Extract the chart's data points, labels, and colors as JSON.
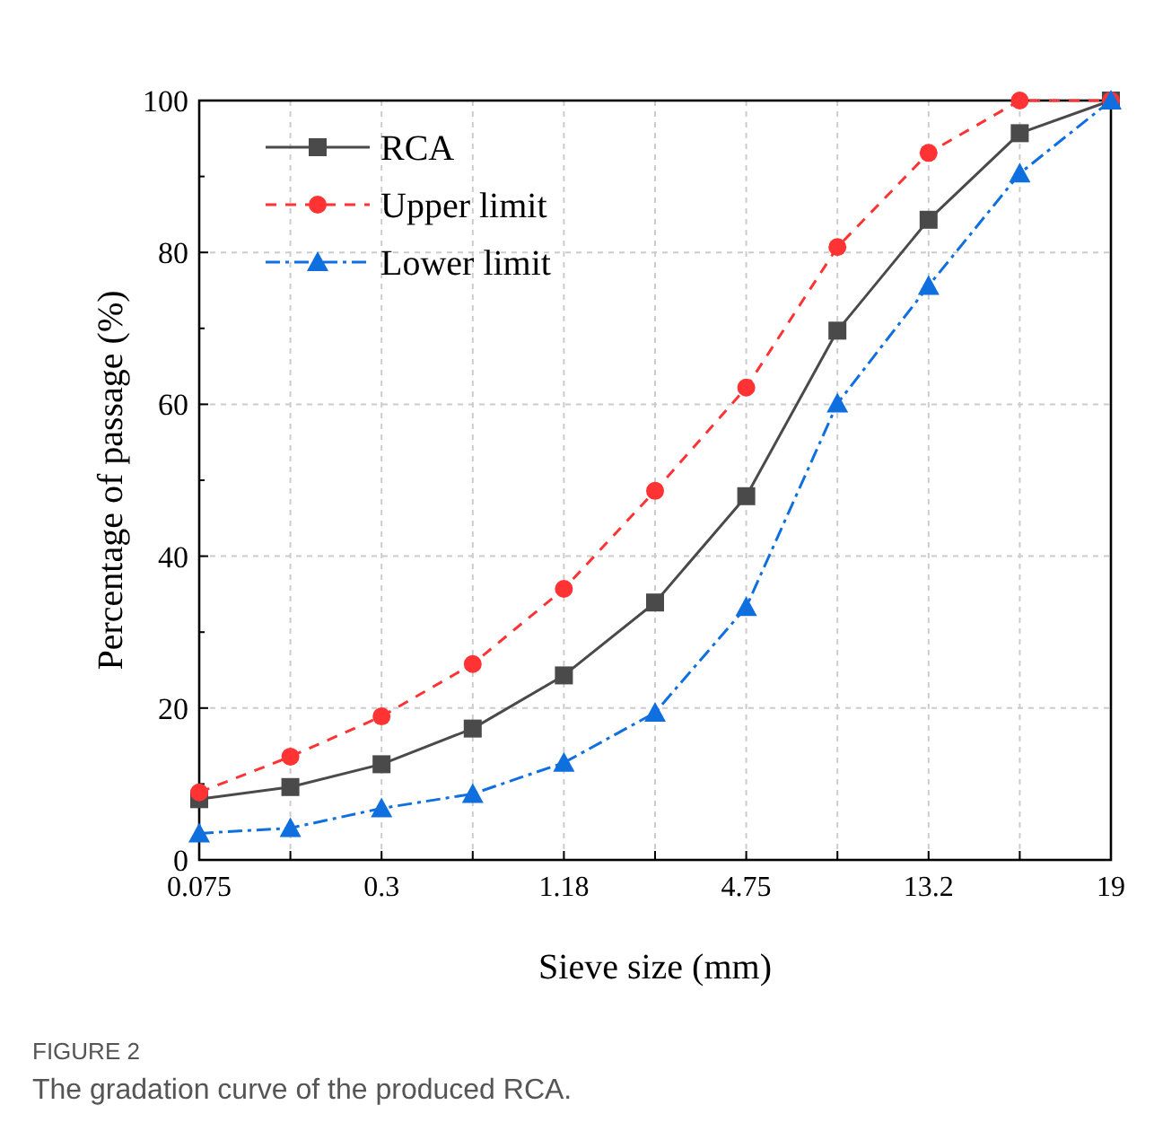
{
  "chart_data": {
    "type": "line",
    "xlabel": "Sieve size (mm)",
    "ylabel": "Percentage of passage (%)",
    "categories": [
      "0.075",
      null,
      "0.3",
      null,
      "1.18",
      null,
      "4.75",
      null,
      "13.2",
      null,
      "19"
    ],
    "series": [
      {
        "name": "RCA",
        "color": "#4a4a4a",
        "marker": "square",
        "line_style": "solid",
        "values": [
          8.0,
          9.6,
          12.6,
          17.3,
          24.3,
          33.9,
          47.9,
          69.7,
          84.3,
          95.7,
          100
        ]
      },
      {
        "name": "Upper limit",
        "color": "#ff3333",
        "marker": "circle",
        "line_style": "dashed",
        "values": [
          8.9,
          13.6,
          18.9,
          25.8,
          35.7,
          48.6,
          62.2,
          80.7,
          93.1,
          100,
          100
        ]
      },
      {
        "name": "Lower limit",
        "color": "#0f6fdf",
        "marker": "triangle",
        "line_style": "dashdot",
        "values": [
          3.5,
          4.2,
          6.8,
          8.7,
          12.8,
          19.4,
          33.3,
          60.1,
          75.6,
          90.4,
          100
        ]
      }
    ],
    "ylim": [
      0,
      100
    ],
    "yticks": [
      0,
      20,
      40,
      60,
      80,
      100
    ],
    "grid": true,
    "legend": "top left",
    "annotations": [
      "FIGURE 2",
      "The gradation curve of the produced RCA."
    ]
  }
}
